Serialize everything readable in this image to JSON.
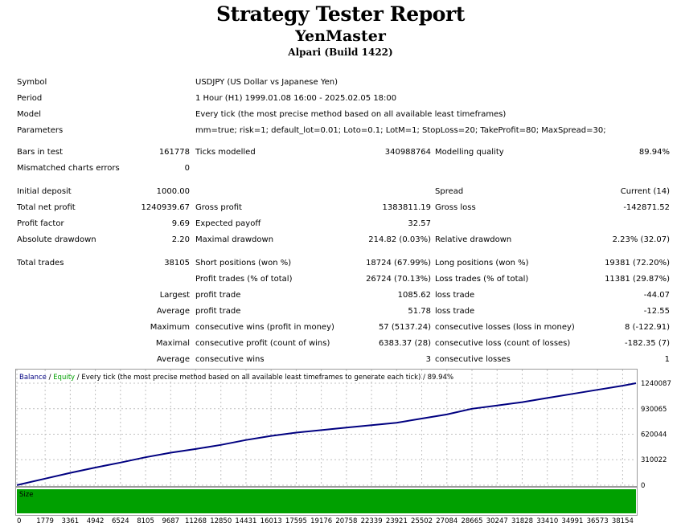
{
  "report": {
    "title": "Strategy Tester Report",
    "expert": "YenMaster",
    "broker": "Alpari (Build 1422)"
  },
  "settings": {
    "symbol_label": "Symbol",
    "symbol_value": "USDJPY (US Dollar vs Japanese Yen)",
    "period_label": "Period",
    "period_value": "1 Hour (H1) 1999.01.08 16:00 - 2025.02.05 18:00",
    "model_label": "Model",
    "model_value": "Every tick (the most precise method based on all available least timeframes)",
    "parameters_label": "Parameters",
    "parameters_value": "mm=true; risk=1; default_lot=0.01; Loto=0.1; LotM=1; StopLoss=20; TakeProfit=80; MaxSpread=30;"
  },
  "stats": {
    "bars_label": "Bars in test",
    "bars_value": "161778",
    "ticks_label": "Ticks modelled",
    "ticks_value": "340988764",
    "quality_label": "Modelling quality",
    "quality_value": "89.94%",
    "mismatch_label": "Mismatched charts errors",
    "mismatch_value": "0",
    "deposit_label": "Initial deposit",
    "deposit_value": "1000.00",
    "spread_label": "Spread",
    "spread_value": "Current (14)",
    "net_label": "Total net profit",
    "net_value": "1240939.67",
    "gross_profit_label": "Gross profit",
    "gross_profit_value": "1383811.19",
    "gross_loss_label": "Gross loss",
    "gross_loss_value": "-142871.52",
    "pf_label": "Profit factor",
    "pf_value": "9.69",
    "payoff_label": "Expected payoff",
    "payoff_value": "32.57",
    "abs_dd_label": "Absolute drawdown",
    "abs_dd_value": "2.20",
    "max_dd_label": "Maximal drawdown",
    "max_dd_value": "214.82 (0.03%)",
    "rel_dd_label": "Relative drawdown",
    "rel_dd_value": "2.23% (32.07)",
    "trades_label": "Total trades",
    "trades_value": "38105",
    "short_label": "Short positions (won %)",
    "short_value": "18724 (67.99%)",
    "long_label": "Long positions (won %)",
    "long_value": "19381 (72.20%)",
    "ptrades_label": "Profit trades (% of total)",
    "ptrades_value": "26724 (70.13%)",
    "ltrades_label": "Loss trades (% of total)",
    "ltrades_value": "11381 (29.87%)",
    "largest_label": "Largest",
    "lp_label": "profit trade",
    "lp_value": "1085.62",
    "ll_label": "loss trade",
    "ll_value": "-44.07",
    "average_label": "Average",
    "ap_label": "profit trade",
    "ap_value": "51.78",
    "al_label": "loss trade",
    "al_value": "-12.55",
    "maximum_label": "Maximum",
    "mcw_label": "consecutive wins (profit in money)",
    "mcw_value": "57 (5137.24)",
    "mcl_label": "consecutive losses (loss in money)",
    "mcl_value": "8 (-122.91)",
    "maximal_label": "Maximal",
    "mcp_label": "consecutive profit (count of wins)",
    "mcp_value": "6383.37 (28)",
    "mclc_label": "consecutive loss (count of losses)",
    "mclc_value": "-182.35 (7)",
    "average2_label": "Average",
    "acw_label": "consecutive wins",
    "acw_value": "3",
    "acl_label": "consecutive losses",
    "acl_value": "1"
  },
  "chart_data": {
    "type": "line",
    "legend": {
      "balance": "Balance",
      "sep1": " / ",
      "equity": "Equity",
      "rest": " / Every tick (the most precise method based on all available least timeframes to generate each tick) / 89.94%"
    },
    "y_ticks": [
      1240087,
      930065,
      620044,
      310022,
      0
    ],
    "ylim": [
      0,
      1240087
    ],
    "xlim": [
      0,
      38995
    ],
    "x_ticks": [
      0,
      1779,
      3361,
      4942,
      6524,
      8105,
      9687,
      11268,
      12850,
      14431,
      16013,
      17595,
      19176,
      20758,
      22339,
      23921,
      25502,
      27084,
      28665,
      30247,
      31828,
      33410,
      34991,
      36573,
      38154
    ],
    "size_label": "Size",
    "series": [
      {
        "name": "Balance",
        "color": "#000080",
        "x": [
          0,
          1779,
          3361,
          4942,
          6524,
          8105,
          9687,
          11268,
          12850,
          14431,
          16013,
          17595,
          19176,
          20758,
          22339,
          23921,
          25502,
          27084,
          28665,
          30247,
          31828,
          33410,
          34991,
          36573,
          38154,
          38995
        ],
        "values": [
          1000,
          80000,
          150000,
          215000,
          275000,
          340000,
          395000,
          440000,
          490000,
          550000,
          600000,
          640000,
          670000,
          700000,
          730000,
          760000,
          810000,
          860000,
          930000,
          970000,
          1010000,
          1060000,
          1110000,
          1160000,
          1210000,
          1240087
        ]
      }
    ],
    "colors": {
      "balance": "#000080",
      "equity": "#00a000",
      "size_bar": "#00a000",
      "grid": "#c0c0c0"
    }
  }
}
